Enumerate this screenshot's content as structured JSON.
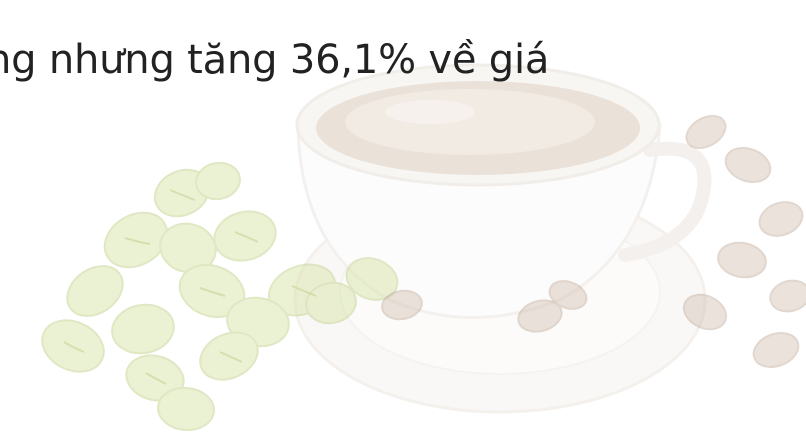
{
  "slide": {
    "headline": "ng nhưng tăng 36,1% về giá",
    "background_image": "coffee-cup-and-beans-watermark"
  },
  "colors": {
    "text": "#222222",
    "green_bean": "#d7e3a8",
    "brown_bean": "#c9b3a4",
    "cup_outline": "#e8e2dc"
  }
}
